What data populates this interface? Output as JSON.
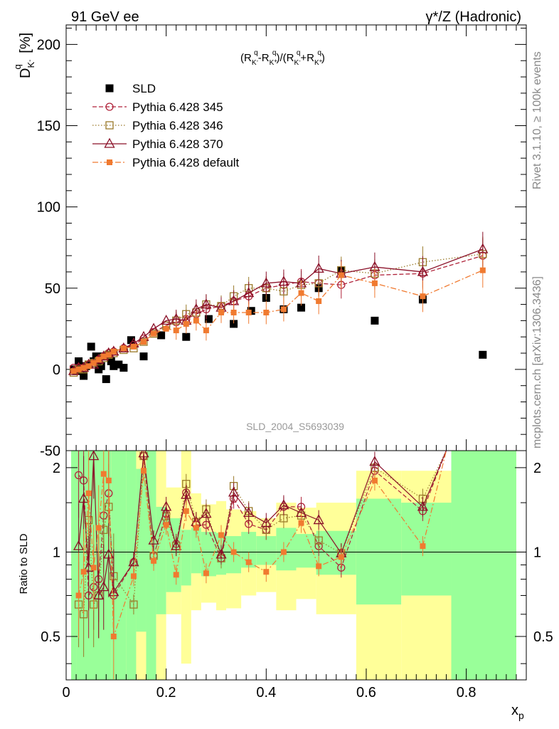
{
  "header": {
    "left": "91 GeV ee",
    "right": "γ*/Z (Hadronic)"
  },
  "side_text": {
    "rivet": "Rivet 3.1.10, ≥ 100k events",
    "mcplots": "mcplots.cern.ch [arXiv:1306.3436]"
  },
  "watermark": "SLD_2004_S5693039",
  "formula": "(R_K-^q-R_K+^q)/(R_K-^q+R_K+^q)",
  "ylabel_main": "D_K-^q [%]",
  "ylabel_ratio": "Ratio to SLD",
  "xlabel": "x_p",
  "colors": {
    "sld": "#000000",
    "p345": "#b0233a",
    "p346": "#9a7a2a",
    "p370": "#8a1028",
    "pdef": "#f07a30",
    "band_green": "#99ff99",
    "band_yellow": "#ffff99"
  },
  "chart_data": {
    "type": "scatter",
    "x_range": [
      0,
      0.92
    ],
    "main_ylim": [
      -50,
      212
    ],
    "main_yticks": [
      -50,
      0,
      50,
      100,
      150,
      200
    ],
    "ratio_ylim": [
      0.35,
      2.3
    ],
    "ratio_yticks": [
      0.5,
      1,
      2
    ],
    "xticks": [
      0,
      0.2,
      0.4,
      0.6,
      0.8
    ],
    "legend_position": "top-left",
    "series": [
      {
        "name": "SLD",
        "key": "sld",
        "marker": "square",
        "line": "none",
        "x": [
          0.015,
          0.02,
          0.025,
          0.03,
          0.035,
          0.04,
          0.045,
          0.05,
          0.055,
          0.06,
          0.065,
          0.07,
          0.075,
          0.08,
          0.085,
          0.09,
          0.095,
          0.105,
          0.115,
          0.13,
          0.155,
          0.19,
          0.24,
          0.285,
          0.335,
          0.37,
          0.4,
          0.435,
          0.47,
          0.505,
          0.55,
          0.617,
          0.713,
          0.833
        ],
        "y": [
          0,
          -1,
          5,
          2,
          -4,
          2,
          3,
          14,
          5,
          8,
          0,
          2,
          8,
          -6,
          9,
          5,
          2,
          3,
          1,
          18,
          8,
          21,
          20,
          31,
          28,
          36,
          44,
          37,
          38,
          50,
          61,
          30,
          43,
          9
        ]
      },
      {
        "name": "Pythia 6.428 345",
        "key": "p345",
        "marker": "circle-open",
        "line": "dashed",
        "x": [
          0.015,
          0.025,
          0.035,
          0.045,
          0.055,
          0.065,
          0.075,
          0.085,
          0.095,
          0.115,
          0.135,
          0.155,
          0.175,
          0.2,
          0.22,
          0.24,
          0.26,
          0.28,
          0.31,
          0.335,
          0.365,
          0.4,
          0.435,
          0.47,
          0.505,
          0.55,
          0.617,
          0.713,
          0.833
        ],
        "y": [
          1,
          1,
          1,
          3,
          4,
          6,
          8,
          10,
          11,
          13,
          15,
          19,
          23,
          27,
          29,
          31,
          34,
          37,
          39,
          42,
          45,
          50,
          52,
          54,
          53,
          52,
          58,
          59,
          70
        ]
      },
      {
        "name": "Pythia 6.428 346",
        "key": "p346",
        "marker": "square-open",
        "line": "dotted",
        "x": [
          0.015,
          0.025,
          0.035,
          0.045,
          0.055,
          0.065,
          0.075,
          0.085,
          0.095,
          0.115,
          0.135,
          0.155,
          0.175,
          0.2,
          0.22,
          0.24,
          0.26,
          0.28,
          0.31,
          0.335,
          0.365,
          0.4,
          0.435,
          0.47,
          0.505,
          0.55,
          0.617,
          0.713,
          0.833
        ],
        "y": [
          -2,
          0,
          0,
          3,
          4,
          5,
          7,
          9,
          10,
          12,
          13,
          17,
          22,
          27,
          30,
          34,
          35,
          40,
          39,
          45,
          50,
          50,
          48,
          52,
          53,
          61,
          59,
          66,
          71
        ]
      },
      {
        "name": "Pythia 6.428 370",
        "key": "p370",
        "marker": "triangle-open",
        "line": "solid",
        "x": [
          0.015,
          0.025,
          0.035,
          0.045,
          0.055,
          0.065,
          0.075,
          0.085,
          0.095,
          0.115,
          0.135,
          0.155,
          0.175,
          0.2,
          0.22,
          0.24,
          0.26,
          0.28,
          0.31,
          0.335,
          0.365,
          0.4,
          0.435,
          0.47,
          0.505,
          0.55,
          0.617,
          0.713,
          0.833
        ],
        "y": [
          -1,
          1,
          1,
          3,
          3,
          6,
          8,
          10,
          11,
          13,
          16,
          20,
          25,
          30,
          31,
          30,
          37,
          40,
          38,
          42,
          47,
          53,
          54,
          53,
          62,
          59,
          63,
          60,
          74
        ]
      },
      {
        "name": "Pythia 6.428 default",
        "key": "pdef",
        "marker": "square-filled",
        "line": "dashdot",
        "x": [
          0.015,
          0.025,
          0.035,
          0.045,
          0.055,
          0.065,
          0.075,
          0.085,
          0.095,
          0.115,
          0.135,
          0.155,
          0.175,
          0.2,
          0.22,
          0.24,
          0.26,
          0.28,
          0.31,
          0.335,
          0.365,
          0.4,
          0.435,
          0.47,
          0.505,
          0.55,
          0.617,
          0.713,
          0.833
        ],
        "y": [
          -1,
          0,
          1,
          2,
          4,
          6,
          8,
          9,
          11,
          13,
          14,
          17,
          22,
          25,
          24,
          28,
          30,
          24,
          35,
          35,
          35,
          35,
          37,
          47,
          42,
          58,
          53,
          45,
          61
        ]
      }
    ],
    "ratio_series": [
      {
        "key": "p345",
        "x": [
          0.025,
          0.035,
          0.045,
          0.055,
          0.065,
          0.075,
          0.085,
          0.095,
          0.135,
          0.155,
          0.175,
          0.2,
          0.22,
          0.24,
          0.26,
          0.28,
          0.31,
          0.335,
          0.365,
          0.4,
          0.435,
          0.47,
          0.505,
          0.55,
          0.617,
          0.713
        ],
        "y": [
          1.88,
          1.8,
          0.7,
          0.75,
          0.8,
          1.35,
          1.62,
          0.7,
          0.92,
          2.2,
          0.97,
          1.37,
          1.07,
          1.63,
          1.25,
          1.25,
          0.95,
          1.55,
          1.26,
          1.2,
          1.45,
          1.45,
          1.05,
          0.88,
          1.95,
          1.4
        ]
      },
      {
        "key": "p346",
        "x": [
          0.025,
          0.035,
          0.045,
          0.055,
          0.065,
          0.075,
          0.085,
          0.095,
          0.135,
          0.155,
          0.175,
          0.2,
          0.22,
          0.24,
          0.26,
          0.28,
          0.31,
          0.335,
          0.365,
          0.4,
          0.435,
          0.47,
          0.505,
          0.55,
          0.617,
          0.713
        ],
        "y": [
          0.65,
          0.6,
          1.3,
          0.65,
          0.7,
          1.2,
          1.45,
          0.82,
          0.65,
          2.2,
          0.97,
          1.34,
          1.05,
          1.75,
          1.28,
          1.42,
          0.95,
          1.72,
          1.4,
          1.2,
          1.32,
          1.35,
          1.1,
          0.99,
          2.0,
          1.55
        ]
      },
      {
        "key": "p370",
        "x": [
          0.025,
          0.035,
          0.045,
          0.055,
          0.065,
          0.075,
          0.085,
          0.095,
          0.135,
          0.155,
          0.175,
          0.2,
          0.22,
          0.24,
          0.26,
          0.28,
          0.31,
          0.335,
          0.365,
          0.4,
          0.435,
          0.47,
          0.505,
          0.55,
          0.617,
          0.713
        ],
        "y": [
          1.05,
          1.55,
          0.88,
          2.2,
          0.7,
          0.75,
          0.98,
          0.72,
          0.92,
          2.25,
          1.1,
          1.45,
          1.05,
          1.6,
          1.28,
          1.37,
          0.98,
          1.63,
          1.38,
          1.27,
          1.47,
          1.38,
          1.3,
          0.99,
          2.1,
          1.45
        ]
      },
      {
        "key": "pdef",
        "x": [
          0.025,
          0.035,
          0.045,
          0.055,
          0.065,
          0.075,
          0.085,
          0.095,
          0.135,
          0.155,
          0.175,
          0.2,
          0.22,
          0.24,
          0.26,
          0.28,
          0.31,
          0.335,
          0.365,
          0.4,
          0.435,
          0.47,
          0.505,
          0.55,
          0.617,
          0.713
        ],
        "y": [
          0.7,
          0.85,
          1.62,
          0.88,
          1.22,
          1.9,
          1.8,
          0.5,
          0.82,
          1.95,
          0.93,
          1.25,
          0.83,
          1.4,
          1.22,
          0.84,
          1.15,
          1.0,
          0.92,
          0.85,
          1.0,
          1.27,
          0.89,
          0.96,
          1.8,
          1.05
        ]
      }
    ],
    "ratio_bands": [
      {
        "x0": 0.01,
        "x1": 0.02,
        "g": [
          0.35,
          2.3
        ],
        "y": [
          0.35,
          2.3
        ]
      },
      {
        "x0": 0.02,
        "x1": 0.09,
        "g": [
          0.35,
          2.3
        ],
        "y": [
          0.35,
          2.3
        ]
      },
      {
        "x0": 0.09,
        "x1": 0.12,
        "g": [
          0.35,
          2.3
        ],
        "y": [
          0.35,
          2.3
        ]
      },
      {
        "x0": 0.12,
        "x1": 0.14,
        "g": [
          0.35,
          2.3
        ],
        "y": [
          0.35,
          2.3
        ]
      },
      {
        "x0": 0.14,
        "x1": 0.16,
        "g": [
          0.52,
          1.98
        ],
        "y": [
          0.35,
          2.3
        ]
      },
      {
        "x0": 0.16,
        "x1": 0.18,
        "g": [
          0.35,
          2.3
        ],
        "y": [
          0.35,
          2.3
        ]
      },
      {
        "x0": 0.18,
        "x1": 0.2,
        "g": [
          0.6,
          1.45
        ],
        "y": [
          0.35,
          2.3
        ]
      },
      {
        "x0": 0.2,
        "x1": 0.23,
        "g": [
          0.72,
          1.32
        ],
        "y": [
          0.6,
          1.7
        ]
      },
      {
        "x0": 0.23,
        "x1": 0.25,
        "g": [
          0.76,
          1.2
        ],
        "y": [
          0.4,
          2.3
        ]
      },
      {
        "x0": 0.25,
        "x1": 0.27,
        "g": [
          0.84,
          1.22
        ],
        "y": [
          0.62,
          1.62
        ]
      },
      {
        "x0": 0.27,
        "x1": 0.3,
        "g": [
          0.82,
          1.18
        ],
        "y": [
          0.66,
          1.48
        ]
      },
      {
        "x0": 0.3,
        "x1": 0.32,
        "g": [
          0.83,
          1.17
        ],
        "y": [
          0.62,
          1.52
        ]
      },
      {
        "x0": 0.32,
        "x1": 0.35,
        "g": [
          0.84,
          1.14
        ],
        "y": [
          0.63,
          1.42
        ]
      },
      {
        "x0": 0.35,
        "x1": 0.38,
        "g": [
          0.88,
          1.18
        ],
        "y": [
          0.7,
          1.4
        ]
      },
      {
        "x0": 0.38,
        "x1": 0.42,
        "g": [
          0.9,
          1.14
        ],
        "y": [
          0.72,
          1.32
        ]
      },
      {
        "x0": 0.42,
        "x1": 0.46,
        "g": [
          0.86,
          1.22
        ],
        "y": [
          0.62,
          1.5
        ]
      },
      {
        "x0": 0.46,
        "x1": 0.5,
        "g": [
          0.88,
          1.16
        ],
        "y": [
          0.68,
          1.44
        ]
      },
      {
        "x0": 0.5,
        "x1": 0.58,
        "g": [
          0.83,
          1.19
        ],
        "y": [
          0.6,
          1.5
        ]
      },
      {
        "x0": 0.58,
        "x1": 0.67,
        "g": [
          0.65,
          1.55
        ],
        "y": [
          0.35,
          1.95
        ]
      },
      {
        "x0": 0.67,
        "x1": 0.77,
        "g": [
          0.7,
          1.5
        ],
        "y": [
          0.35,
          1.95
        ]
      },
      {
        "x0": 0.77,
        "x1": 0.9,
        "g": [
          0.35,
          2.3
        ],
        "y": [
          0.35,
          2.3
        ]
      }
    ]
  }
}
